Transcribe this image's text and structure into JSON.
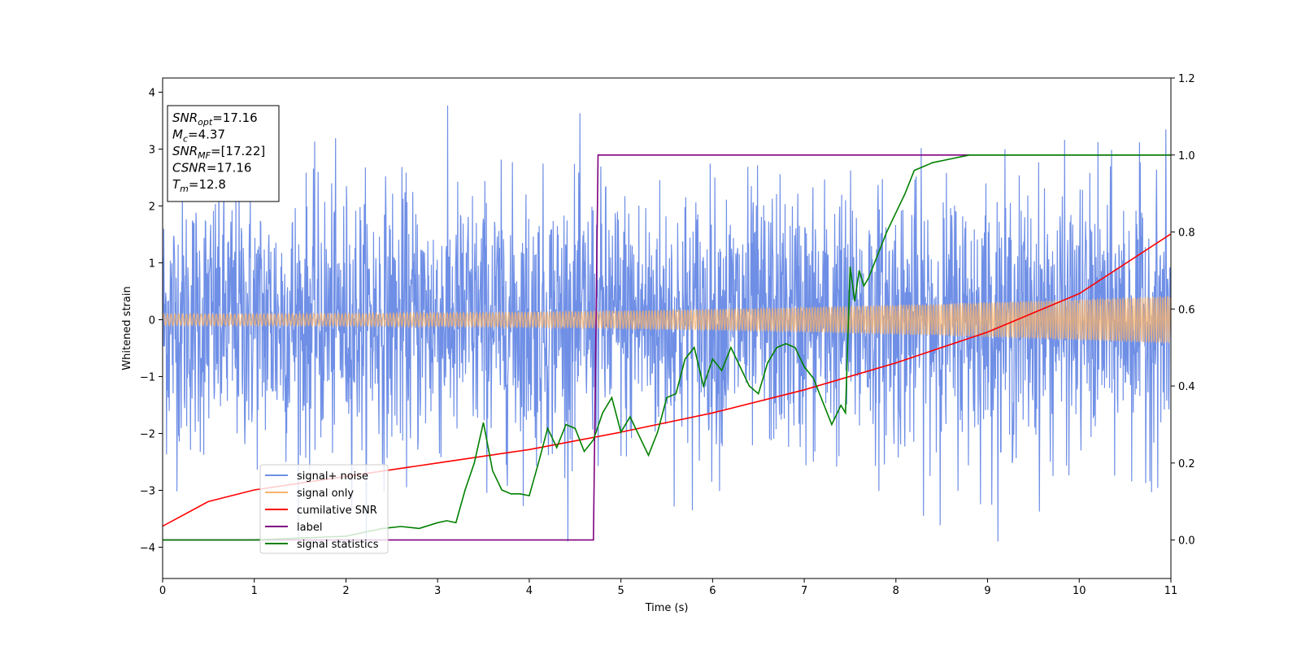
{
  "chart_data": {
    "type": "line",
    "xlabel": "Time (s)",
    "ylabel": "Whitened strain",
    "xlim": [
      0,
      11
    ],
    "ylim": [
      -4.55,
      4.25
    ],
    "y2lim": [
      -0.1,
      1.2
    ],
    "xticks": [
      0,
      1,
      2,
      3,
      4,
      5,
      6,
      7,
      8,
      9,
      10,
      11
    ],
    "yticks": [
      -4,
      -3,
      -2,
      -1,
      0,
      1,
      2,
      3,
      4
    ],
    "y2ticks": [
      0.0,
      0.2,
      0.4,
      0.6,
      0.8,
      1.0,
      1.2
    ],
    "grid": false,
    "legend_position": "lower-left",
    "colors": {
      "noise": "#6f8fe6",
      "signal": "#f7b26b",
      "cumulative": "#ff0000",
      "label": "#800080",
      "statistics": "#008000"
    },
    "annotation": [
      {
        "base": "SNR",
        "sub": "opt",
        "value": "=17.16"
      },
      {
        "base": "M",
        "sub": "c",
        "value": "=4.37"
      },
      {
        "base": "SNR",
        "sub": "MF",
        "value": "=[17.22]"
      },
      {
        "base": "CSNR",
        "sub": "",
        "value": "=17.16"
      },
      {
        "base": "T",
        "sub": "m",
        "value": "=12.8"
      }
    ],
    "series": [
      {
        "name": "signal+ noise",
        "axis": "left",
        "description": "white noise, amplitude approx ±3.8"
      },
      {
        "name": "signal only",
        "axis": "left",
        "amplitude_start": 0.1,
        "amplitude_end": 0.42
      },
      {
        "name": "cumilative SNR",
        "axis": "right",
        "x": [
          0,
          0.5,
          1,
          2,
          3,
          4,
          5,
          6,
          7,
          8,
          9,
          10,
          11
        ],
        "y": [
          0.036,
          0.1,
          0.13,
          0.165,
          0.2,
          0.235,
          0.28,
          0.33,
          0.39,
          0.46,
          0.54,
          0.64,
          0.795
        ]
      },
      {
        "name": "label",
        "axis": "right",
        "x": [
          0,
          4.7,
          4.75,
          11
        ],
        "y": [
          0.0,
          0.0,
          1.0,
          1.0
        ]
      },
      {
        "name": "signal statistics",
        "axis": "right",
        "x": [
          0,
          1,
          2,
          2.4,
          2.6,
          2.8,
          3.0,
          3.1,
          3.2,
          3.3,
          3.4,
          3.5,
          3.6,
          3.7,
          3.8,
          3.9,
          4.0,
          4.1,
          4.2,
          4.3,
          4.4,
          4.5,
          4.6,
          4.7,
          4.8,
          4.9,
          5.0,
          5.1,
          5.2,
          5.3,
          5.4,
          5.5,
          5.6,
          5.7,
          5.8,
          5.9,
          6.0,
          6.1,
          6.2,
          6.3,
          6.4,
          6.5,
          6.6,
          6.7,
          6.8,
          6.9,
          7.0,
          7.1,
          7.2,
          7.3,
          7.4,
          7.45,
          7.5,
          7.55,
          7.6,
          7.65,
          7.7,
          7.8,
          7.9,
          8.0,
          8.1,
          8.2,
          8.3,
          8.4,
          8.6,
          8.8,
          9.0,
          10.0,
          11.0
        ],
        "y": [
          0.0,
          0.0,
          0.01,
          0.03,
          0.035,
          0.03,
          0.045,
          0.05,
          0.045,
          0.13,
          0.2,
          0.305,
          0.18,
          0.13,
          0.12,
          0.12,
          0.115,
          0.2,
          0.29,
          0.24,
          0.3,
          0.29,
          0.23,
          0.26,
          0.33,
          0.37,
          0.28,
          0.32,
          0.27,
          0.22,
          0.28,
          0.37,
          0.38,
          0.47,
          0.5,
          0.4,
          0.47,
          0.44,
          0.5,
          0.45,
          0.4,
          0.38,
          0.46,
          0.5,
          0.51,
          0.5,
          0.45,
          0.42,
          0.36,
          0.3,
          0.35,
          0.33,
          0.71,
          0.62,
          0.7,
          0.66,
          0.68,
          0.74,
          0.8,
          0.85,
          0.9,
          0.96,
          0.97,
          0.98,
          0.99,
          1.0,
          1.0,
          1.0,
          1.0
        ]
      }
    ]
  }
}
